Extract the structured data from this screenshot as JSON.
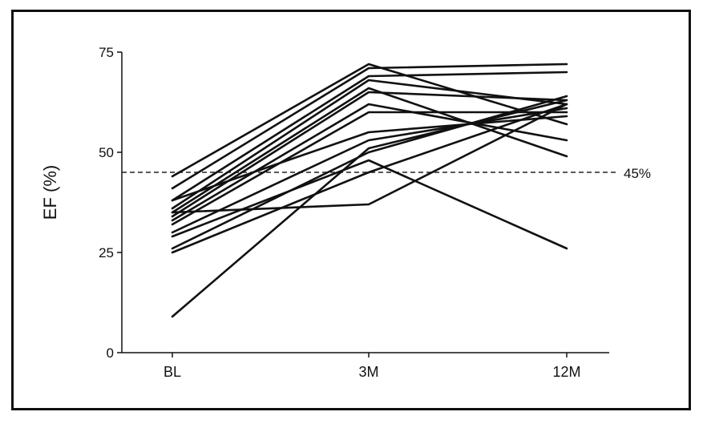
{
  "chart_data": {
    "type": "line",
    "title": "",
    "xlabel": "",
    "ylabel": "EF (%)",
    "categories": [
      "BL",
      "3M",
      "12M"
    ],
    "ylim": [
      0,
      75
    ],
    "yticks": [
      "0",
      "25",
      "50",
      "75"
    ],
    "reference_line": {
      "value": 45,
      "label": "45%",
      "style": "dashed"
    },
    "series": [
      {
        "values": [
          44,
          72,
          57
        ]
      },
      {
        "values": [
          41,
          71,
          72
        ]
      },
      {
        "values": [
          38,
          69,
          70
        ]
      },
      {
        "values": [
          36,
          68,
          62
        ]
      },
      {
        "values": [
          35,
          66,
          49
        ]
      },
      {
        "values": [
          34,
          65,
          63
        ]
      },
      {
        "values": [
          33,
          62,
          53
        ]
      },
      {
        "values": [
          32,
          60,
          60
        ]
      },
      {
        "values": [
          38,
          55,
          59
        ]
      },
      {
        "values": [
          30,
          53,
          61
        ]
      },
      {
        "values": [
          29,
          48,
          26
        ]
      },
      {
        "values": [
          26,
          50,
          64
        ]
      },
      {
        "values": [
          25,
          45,
          62
        ]
      },
      {
        "values": [
          35,
          37,
          62
        ]
      },
      {
        "values": [
          9,
          51,
          63
        ]
      }
    ],
    "grid": false,
    "line_color": "#111111"
  }
}
